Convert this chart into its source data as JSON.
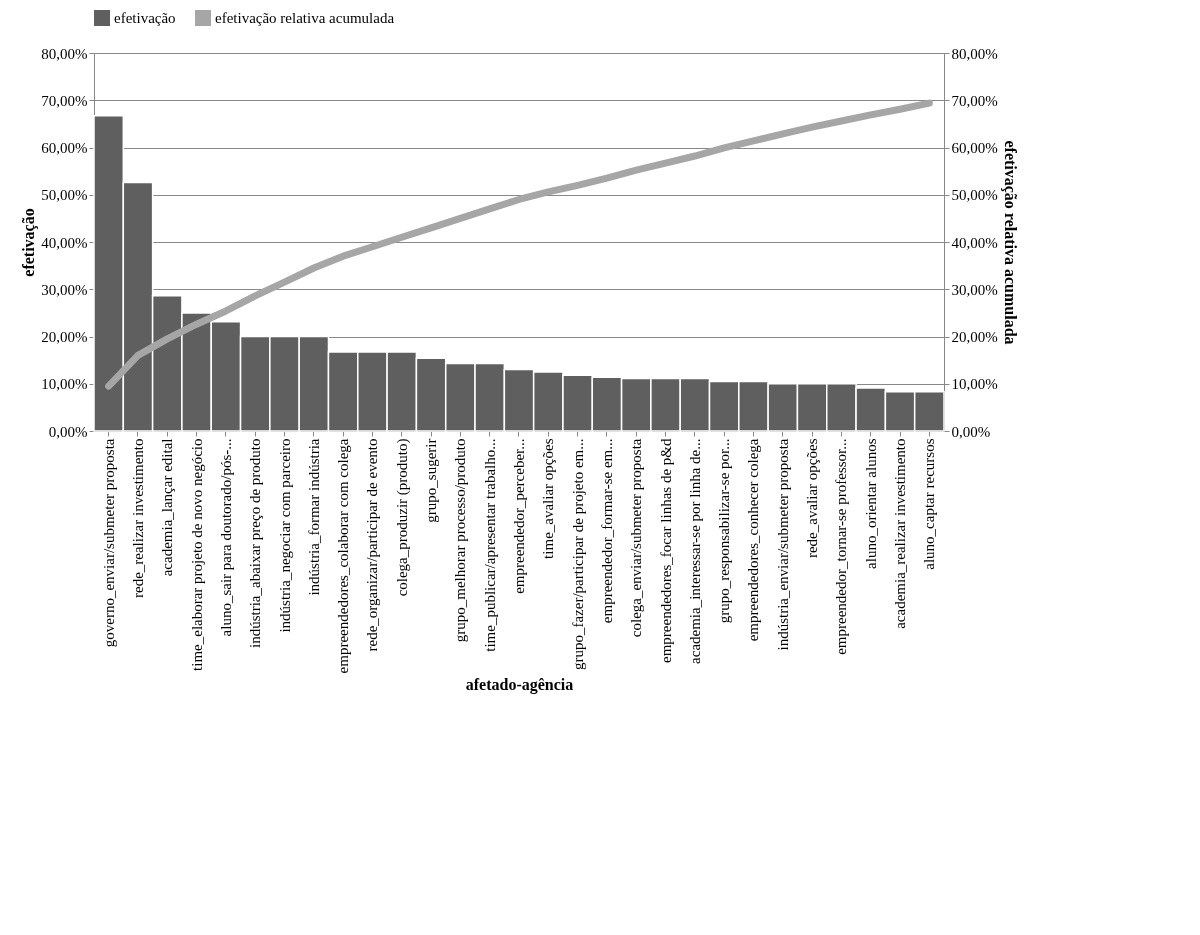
{
  "chart_data": {
    "type": "bar",
    "xlabel": "afetado-agência",
    "ylabel": "efetivação",
    "y2label": "efetivação relativa acumulada",
    "categories": [
      "governo_enviar/submeter proposta",
      "rede_realizar investimento",
      "academia_lançar edital",
      "time_elaborar projeto de novo negócio",
      "aluno_sair para doutorado/pós-...",
      "indústria_abaixar preço de produto",
      "indústria_negociar com parceiro",
      "indústria_formar indústria",
      "empreendedores_colaborar com colega",
      "rede_organizar/participar de evento",
      "colega_produzir (produto)",
      "grupo_sugerir",
      "grupo_melhorar processo/produto",
      "time_publicar/apresentar trabalho...",
      "empreendedor_perceber...",
      "time_avaliar opções",
      "grupo_fazer/participar de projeto em...",
      "empreendedor_formar-se em...",
      "colega_enviar/submeter proposta",
      "empreendedores_focar linhas de p&d",
      "academia_interessar-se por linha de...",
      "grupo_responsabilizar-se por...",
      "empreendedores_conhecer colega",
      "indústria_enviar/submeter proposta",
      "rede_avaliar opções",
      "empreendedor_tornar-se professor...",
      "aluno_orientar alunos",
      "academia_realizar investimento",
      "aluno_captar recursos"
    ],
    "series": [
      {
        "name": "efetivação",
        "color": "#5f5f5f",
        "values": [
          66.7,
          52.6,
          28.6,
          25.0,
          23.1,
          20.0,
          20.0,
          20.0,
          16.7,
          16.7,
          16.7,
          15.4,
          14.3,
          14.3,
          13.0,
          12.5,
          11.8,
          11.4,
          11.1,
          11.1,
          11.1,
          10.5,
          10.5,
          10.0,
          10.0,
          10.0,
          9.1,
          8.3,
          8.3
        ]
      },
      {
        "name": "efetivação relativa acumulada",
        "type": "line",
        "axis": "y2",
        "color": "#a6a6a6",
        "values": [
          9.5,
          16.0,
          19.5,
          22.6,
          25.4,
          28.6,
          31.5,
          34.5,
          37.0,
          39.0,
          41.0,
          43.0,
          45.0,
          47.0,
          49.0,
          50.6,
          52.0,
          53.5,
          55.2,
          56.7,
          58.2,
          59.9,
          61.4,
          62.9,
          64.3,
          65.6,
          66.9,
          68.1,
          69.4
        ]
      }
    ],
    "ylim": [
      0,
      80
    ],
    "y2lim": [
      0,
      80
    ],
    "yticks": [
      {
        "value": 0,
        "label": "0,00%"
      },
      {
        "value": 10,
        "label": "10,00%"
      },
      {
        "value": 20,
        "label": "20,00%"
      },
      {
        "value": 30,
        "label": "30,00%"
      },
      {
        "value": 40,
        "label": "40,00%"
      },
      {
        "value": 50,
        "label": "50,00%"
      },
      {
        "value": 60,
        "label": "60,00%"
      },
      {
        "value": 70,
        "label": "70,00%"
      },
      {
        "value": 80,
        "label": "80,00%"
      }
    ],
    "y2ticks": [
      {
        "value": 0,
        "label": "0,00%"
      },
      {
        "value": 10,
        "label": "10,00%"
      },
      {
        "value": 20,
        "label": "20,00%"
      },
      {
        "value": 30,
        "label": "30,00%"
      },
      {
        "value": 40,
        "label": "40,00%"
      },
      {
        "value": 50,
        "label": "50,00%"
      },
      {
        "value": 60,
        "label": "60,00%"
      },
      {
        "value": 70,
        "label": "70,00%"
      },
      {
        "value": 80,
        "label": "80,00%"
      }
    ],
    "grid": "y",
    "legend": "top"
  }
}
